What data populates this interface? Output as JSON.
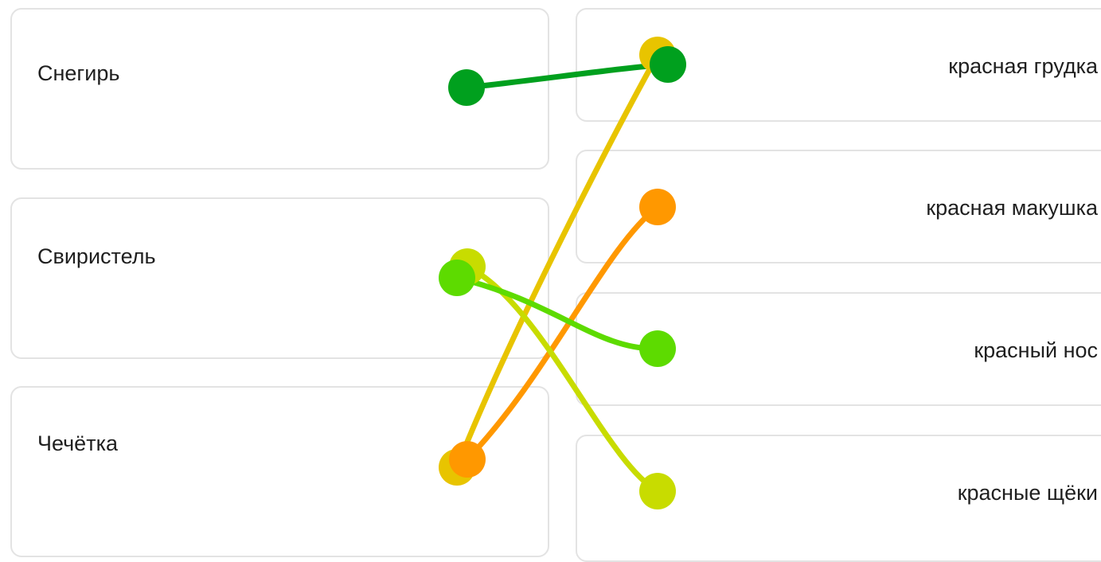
{
  "left_items": [
    {
      "label": "Снегирь"
    },
    {
      "label": "Свиристель"
    },
    {
      "label": "Чечётка"
    }
  ],
  "right_items": [
    {
      "label": "красная грудка"
    },
    {
      "label": "красная макушка"
    },
    {
      "label": "красный нос"
    },
    {
      "label": "красные щёки"
    }
  ],
  "connections": [
    {
      "from": "Чечётка",
      "to": "красная грудка",
      "color": "#E8C400"
    },
    {
      "from": "Чечётка",
      "to": "красная макушка",
      "color": "#FF9800"
    },
    {
      "from": "Свиристель",
      "to": "красные щёки",
      "color": "#C8DC00"
    },
    {
      "from": "Свиристель",
      "to": "красный нос",
      "color": "#5DDB00"
    },
    {
      "from": "Снегирь",
      "to": "красная грудка",
      "color": "#00A01E"
    }
  ]
}
